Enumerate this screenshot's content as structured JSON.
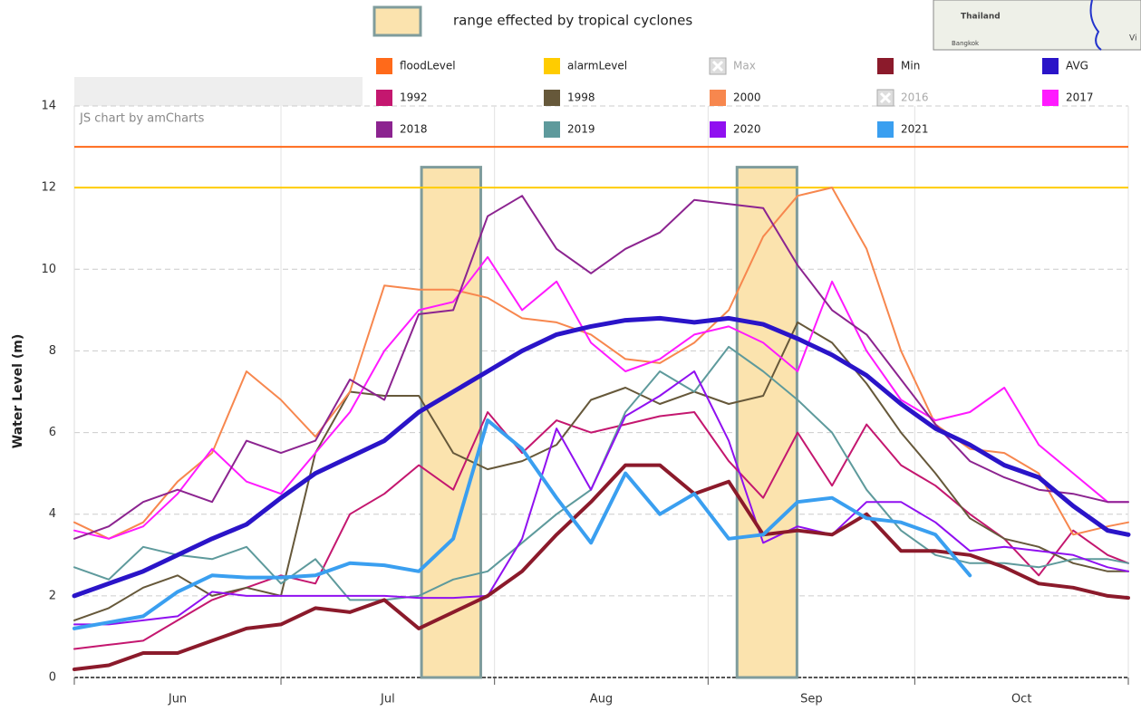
{
  "chart_data": {
    "type": "line",
    "y_label": "Water Level (m)",
    "credit": "JS chart by amCharts",
    "ylim": [
      0,
      14
    ],
    "yticks": [
      0,
      2,
      4,
      6,
      8,
      10,
      12,
      14
    ],
    "xlim": [
      0,
      153
    ],
    "xticks": [
      {
        "value": 15,
        "label": "Jun"
      },
      {
        "value": 45.5,
        "label": "Jul"
      },
      {
        "value": 76.5,
        "label": "Aug"
      },
      {
        "value": 107,
        "label": "Sep"
      },
      {
        "value": 137.5,
        "label": "Oct"
      }
    ],
    "xgrid": [
      0,
      30,
      61,
      92,
      122,
      153
    ],
    "grid": true,
    "x": [
      0,
      5,
      10,
      15,
      20,
      25,
      30,
      35,
      40,
      45,
      50,
      55,
      60,
      65,
      70,
      75,
      80,
      85,
      90,
      95,
      100,
      105,
      110,
      115,
      120,
      125,
      130,
      135,
      140,
      145,
      150,
      153
    ],
    "cyclone_ranges": {
      "label": "range effected by tropical cyclones",
      "color": "#fbe3ae",
      "edge": "#7f9c9c",
      "top": 12.5,
      "ranges": [
        [
          50.4,
          59
        ],
        [
          96.2,
          104.9
        ]
      ]
    },
    "map": {
      "labels": [
        "Thailand",
        "Bangkok",
        "Vi"
      ]
    },
    "series": [
      {
        "name": "floodLevel",
        "color": "#ff6a1a",
        "value": 13,
        "line_width": 2
      },
      {
        "name": "alarmLevel",
        "color": "#ffcc00",
        "value": 12,
        "line_width": 2
      },
      {
        "name": "Max",
        "color": "#aaaaaa",
        "visible": false
      },
      {
        "name": "Min",
        "color": "#8b1a2b",
        "line_width": 4,
        "values": [
          0.2,
          0.3,
          0.6,
          0.6,
          0.9,
          1.2,
          1.3,
          1.7,
          1.6,
          1.9,
          1.2,
          1.6,
          2.0,
          2.6,
          3.5,
          4.3,
          5.2,
          5.2,
          4.5,
          4.8,
          3.5,
          3.6,
          3.5,
          4.0,
          3.1,
          3.1,
          3.0,
          2.7,
          2.3,
          2.2,
          2.0,
          1.95
        ]
      },
      {
        "name": "AVG",
        "color": "#2a14c8",
        "line_width": 5,
        "values": [
          2.0,
          2.3,
          2.6,
          3.0,
          3.4,
          3.75,
          4.4,
          5.0,
          5.4,
          5.8,
          6.5,
          7.0,
          7.5,
          8.0,
          8.4,
          8.6,
          8.75,
          8.8,
          8.7,
          8.8,
          8.65,
          8.3,
          7.9,
          7.4,
          6.7,
          6.1,
          5.7,
          5.2,
          4.9,
          4.2,
          3.6,
          3.5
        ]
      },
      {
        "name": "1992",
        "color": "#c4176f",
        "line_width": 2,
        "values": [
          0.7,
          0.8,
          0.9,
          1.4,
          1.9,
          2.2,
          2.5,
          2.3,
          4.0,
          4.5,
          5.2,
          4.6,
          6.5,
          5.5,
          6.3,
          6.0,
          6.2,
          6.4,
          6.5,
          5.3,
          4.4,
          6.0,
          4.7,
          6.2,
          5.2,
          4.7,
          4.0,
          3.4,
          2.5,
          3.6,
          3.0,
          2.8
        ]
      },
      {
        "name": "1998",
        "color": "#66583a",
        "line_width": 2,
        "values": [
          1.4,
          1.7,
          2.2,
          2.5,
          2.0,
          2.2,
          2.0,
          5.5,
          7.0,
          6.9,
          6.9,
          5.5,
          5.1,
          5.3,
          5.7,
          6.8,
          7.1,
          6.7,
          7.0,
          6.7,
          6.9,
          8.7,
          8.2,
          7.2,
          6.0,
          5.0,
          3.9,
          3.4,
          3.2,
          2.8,
          2.6,
          2.6
        ]
      },
      {
        "name": "2000",
        "color": "#f7874e",
        "line_width": 2,
        "values": [
          3.8,
          3.4,
          3.8,
          4.8,
          5.5,
          7.5,
          6.8,
          5.9,
          7.0,
          9.6,
          9.5,
          9.5,
          9.3,
          8.8,
          8.7,
          8.4,
          7.8,
          7.7,
          8.2,
          9.0,
          10.8,
          11.8,
          12.0,
          10.5,
          8.0,
          6.2,
          5.6,
          5.5,
          5.0,
          3.5,
          3.7,
          3.8
        ]
      },
      {
        "name": "2016",
        "color": "#aaaaaa",
        "visible": false
      },
      {
        "name": "2017",
        "color": "#ff1aff",
        "line_width": 2,
        "values": [
          3.6,
          3.4,
          3.7,
          4.5,
          5.6,
          4.8,
          4.5,
          5.5,
          6.5,
          8.0,
          9.0,
          9.2,
          10.3,
          9.0,
          9.7,
          8.2,
          7.5,
          7.8,
          8.4,
          8.6,
          8.2,
          7.5,
          9.7,
          8.0,
          6.8,
          6.3,
          6.5,
          7.1,
          5.7,
          5.0,
          4.3,
          4.3
        ]
      },
      {
        "name": "2018",
        "color": "#8c2490",
        "line_width": 2,
        "values": [
          3.4,
          3.7,
          4.3,
          4.6,
          4.3,
          5.8,
          5.5,
          5.8,
          7.3,
          6.8,
          8.9,
          9.0,
          11.3,
          11.8,
          10.5,
          9.9,
          10.5,
          10.9,
          11.7,
          11.6,
          11.5,
          10.1,
          9.0,
          8.4,
          7.3,
          6.2,
          5.3,
          4.9,
          4.6,
          4.5,
          4.3,
          4.3
        ]
      },
      {
        "name": "2019",
        "color": "#5e9a9c",
        "line_width": 2,
        "values": [
          2.7,
          2.4,
          3.2,
          3.0,
          2.9,
          3.2,
          2.3,
          2.9,
          1.9,
          1.9,
          2.0,
          2.4,
          2.6,
          3.3,
          4.0,
          4.6,
          6.5,
          7.5,
          7.0,
          8.1,
          7.5,
          6.8,
          6.0,
          4.6,
          3.6,
          3.0,
          2.8,
          2.8,
          2.7,
          2.9,
          2.9,
          2.8
        ]
      },
      {
        "name": "2020",
        "color": "#9010f0",
        "line_width": 2,
        "values": [
          1.3,
          1.3,
          1.4,
          1.5,
          2.1,
          2.0,
          2.0,
          2.0,
          2.0,
          2.0,
          1.95,
          1.95,
          2.0,
          3.4,
          6.1,
          4.6,
          6.4,
          6.9,
          7.5,
          5.8,
          3.3,
          3.7,
          3.5,
          4.3,
          4.3,
          3.8,
          3.1,
          3.2,
          3.1,
          3.0,
          2.7,
          2.6
        ]
      },
      {
        "name": "2021",
        "color": "#3a9ff0",
        "line_width": 4,
        "values": [
          1.2,
          1.35,
          1.5,
          2.1,
          2.5,
          2.45,
          2.45,
          2.5,
          2.8,
          2.75,
          2.6,
          3.4,
          6.3,
          5.6,
          4.4,
          3.3,
          5.0,
          4.0,
          4.5,
          3.4,
          3.5,
          4.3,
          4.4,
          3.9,
          3.8,
          3.5,
          2.5,
          null,
          null,
          null,
          null,
          null
        ]
      }
    ]
  }
}
